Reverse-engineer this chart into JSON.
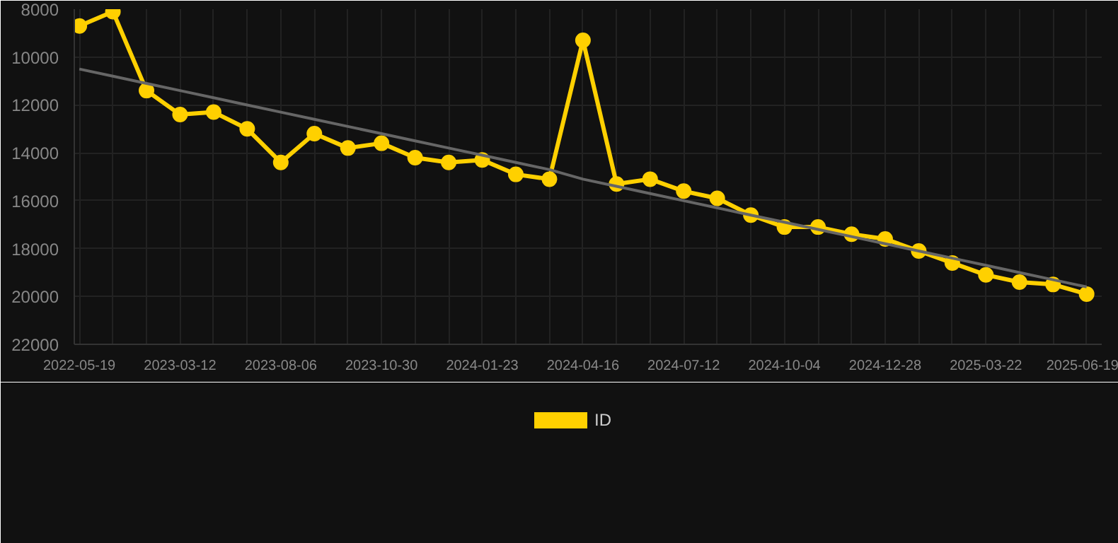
{
  "chart_data": {
    "type": "line",
    "categories": [
      "2022-05-19",
      null,
      null,
      "2023-03-12",
      null,
      null,
      "2023-08-06",
      null,
      null,
      "2023-10-30",
      null,
      null,
      "2024-01-23",
      null,
      null,
      "2024-04-16",
      null,
      null,
      "2024-07-12",
      null,
      null,
      "2024-10-04",
      null,
      null,
      "2024-12-28",
      null,
      null,
      "2025-03-22",
      null,
      null,
      "2025-06-19"
    ],
    "series": [
      {
        "name": "ID",
        "color": "#ffd000",
        "marker": "circle",
        "values": [
          8700,
          8100,
          11400,
          12400,
          12300,
          13000,
          14400,
          13200,
          13800,
          13600,
          14200,
          14400,
          14300,
          14900,
          15100,
          9300,
          15300,
          15100,
          15600,
          15900,
          16600,
          17100,
          17100,
          17400,
          17600,
          18100,
          18600,
          19100,
          19400,
          19500,
          19900
        ]
      },
      {
        "type": "line",
        "color": "#666666",
        "marker": "none",
        "values": [
          10500,
          10800,
          11100,
          11400,
          11700,
          12000,
          12300,
          12600,
          12900,
          13200,
          13500,
          13800,
          14100,
          14400,
          14700,
          15100,
          15400,
          15700,
          16000,
          16300,
          16600,
          16900,
          17200,
          17500,
          17800,
          18100,
          18400,
          18700,
          19000,
          19300,
          19600
        ]
      }
    ],
    "ylim": [
      22000,
      8000
    ],
    "yticks": [
      8000,
      10000,
      12000,
      14000,
      16000,
      18000,
      20000,
      22000
    ],
    "grid": true,
    "legend": "bottom"
  }
}
